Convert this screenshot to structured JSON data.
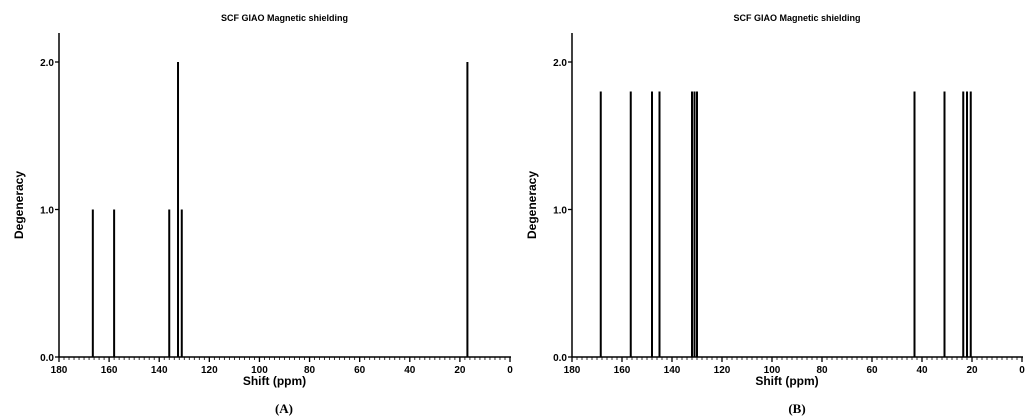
{
  "chart_data": [
    {
      "type": "bar",
      "title": "SCF GIAO Magnetic shielding",
      "xlabel": "Shift (ppm)",
      "ylabel": "Degeneracy",
      "panel_label": "(A)",
      "xlim": [
        180,
        0
      ],
      "ylim": [
        0,
        2.2
      ],
      "x_ticks": [
        "180",
        "160",
        "140",
        "120",
        "100",
        "80",
        "60",
        "40",
        "20",
        "0"
      ],
      "y_ticks": [
        "0.0",
        "1.0",
        "2.0"
      ],
      "x": [
        166.5,
        158.0,
        136.0,
        132.5,
        131.0,
        17.0
      ],
      "values": [
        1.0,
        1.0,
        1.0,
        2.0,
        1.0,
        2.0
      ]
    },
    {
      "type": "bar",
      "title": "SCF GIAO Magnetic shielding",
      "xlabel": "Shift (ppm)",
      "ylabel": "Degeneracy",
      "panel_label": "(B)",
      "xlim": [
        180,
        0
      ],
      "ylim": [
        0,
        2.2
      ],
      "x_ticks": [
        "180",
        "160",
        "140",
        "120",
        "100",
        "80",
        "60",
        "40",
        "20",
        "0"
      ],
      "y_ticks": [
        "0.0",
        "1.0",
        "2.0"
      ],
      "x": [
        168.5,
        156.5,
        148.0,
        145.0,
        132.0,
        131.0,
        130.0,
        43.0,
        31.0,
        23.5,
        22.0,
        20.5
      ],
      "values": [
        1.8,
        1.8,
        1.8,
        1.8,
        1.8,
        1.8,
        1.8,
        1.8,
        1.8,
        1.8,
        1.8,
        1.8
      ]
    }
  ]
}
